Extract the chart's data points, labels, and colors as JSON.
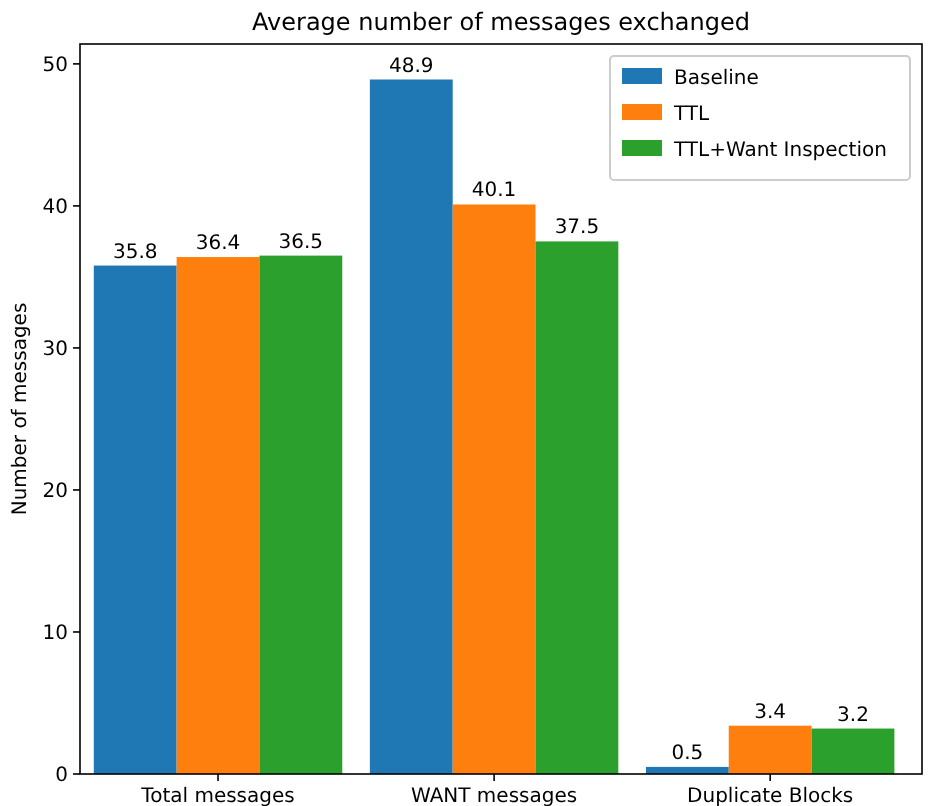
{
  "chart_data": {
    "type": "bar",
    "title": "Average number of messages exchanged",
    "ylabel": "Number of messages",
    "categories": [
      "Total messages",
      "WANT messages",
      "Duplicate Blocks"
    ],
    "series": [
      {
        "name": "Baseline",
        "color": "#1f77b4",
        "values": [
          35.8,
          48.9,
          0.5
        ]
      },
      {
        "name": "TTL",
        "color": "#ff7f0e",
        "values": [
          36.4,
          40.1,
          3.4
        ]
      },
      {
        "name": "TTL+Want Inspection",
        "color": "#2ca02c",
        "values": [
          36.5,
          37.5,
          3.2
        ]
      }
    ],
    "ylim": [
      0,
      51.4
    ],
    "yticks": [
      0,
      10,
      20,
      30,
      40,
      50
    ],
    "data_labels": true,
    "legend": "top right",
    "grid": false
  }
}
